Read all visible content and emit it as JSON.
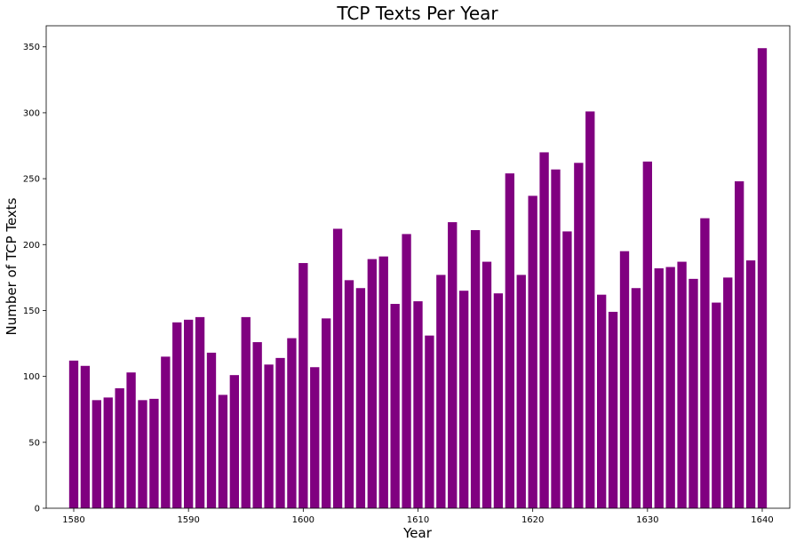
{
  "chart_data": {
    "type": "bar",
    "title": "TCP Texts Per Year",
    "xlabel": "Year",
    "ylabel": "Number of TCP Texts",
    "color": "#800080",
    "xlim": [
      1577.6,
      1642.4
    ],
    "ylim": [
      0,
      366
    ],
    "xticks": [
      1580,
      1590,
      1600,
      1610,
      1620,
      1630,
      1640
    ],
    "yticks": [
      0,
      50,
      100,
      150,
      200,
      250,
      300,
      350
    ],
    "grid": false,
    "legend": "none",
    "x": [
      1580,
      1581,
      1582,
      1583,
      1584,
      1585,
      1586,
      1587,
      1588,
      1589,
      1590,
      1591,
      1592,
      1593,
      1594,
      1595,
      1596,
      1597,
      1598,
      1599,
      1600,
      1601,
      1602,
      1603,
      1604,
      1605,
      1606,
      1607,
      1608,
      1609,
      1610,
      1611,
      1612,
      1613,
      1614,
      1615,
      1616,
      1617,
      1618,
      1619,
      1620,
      1621,
      1622,
      1623,
      1624,
      1625,
      1626,
      1627,
      1628,
      1629,
      1630,
      1631,
      1632,
      1633,
      1634,
      1635,
      1636,
      1637,
      1638,
      1639,
      1640
    ],
    "values": [
      112,
      108,
      82,
      84,
      91,
      103,
      82,
      83,
      115,
      141,
      143,
      145,
      118,
      86,
      101,
      145,
      126,
      109,
      114,
      129,
      186,
      107,
      144,
      212,
      173,
      167,
      189,
      191,
      155,
      208,
      157,
      131,
      177,
      217,
      165,
      211,
      187,
      163,
      254,
      177,
      237,
      270,
      257,
      210,
      262,
      301,
      162,
      149,
      195,
      167,
      263,
      182,
      183,
      187,
      174,
      220,
      156,
      175,
      248,
      188,
      349
    ]
  }
}
